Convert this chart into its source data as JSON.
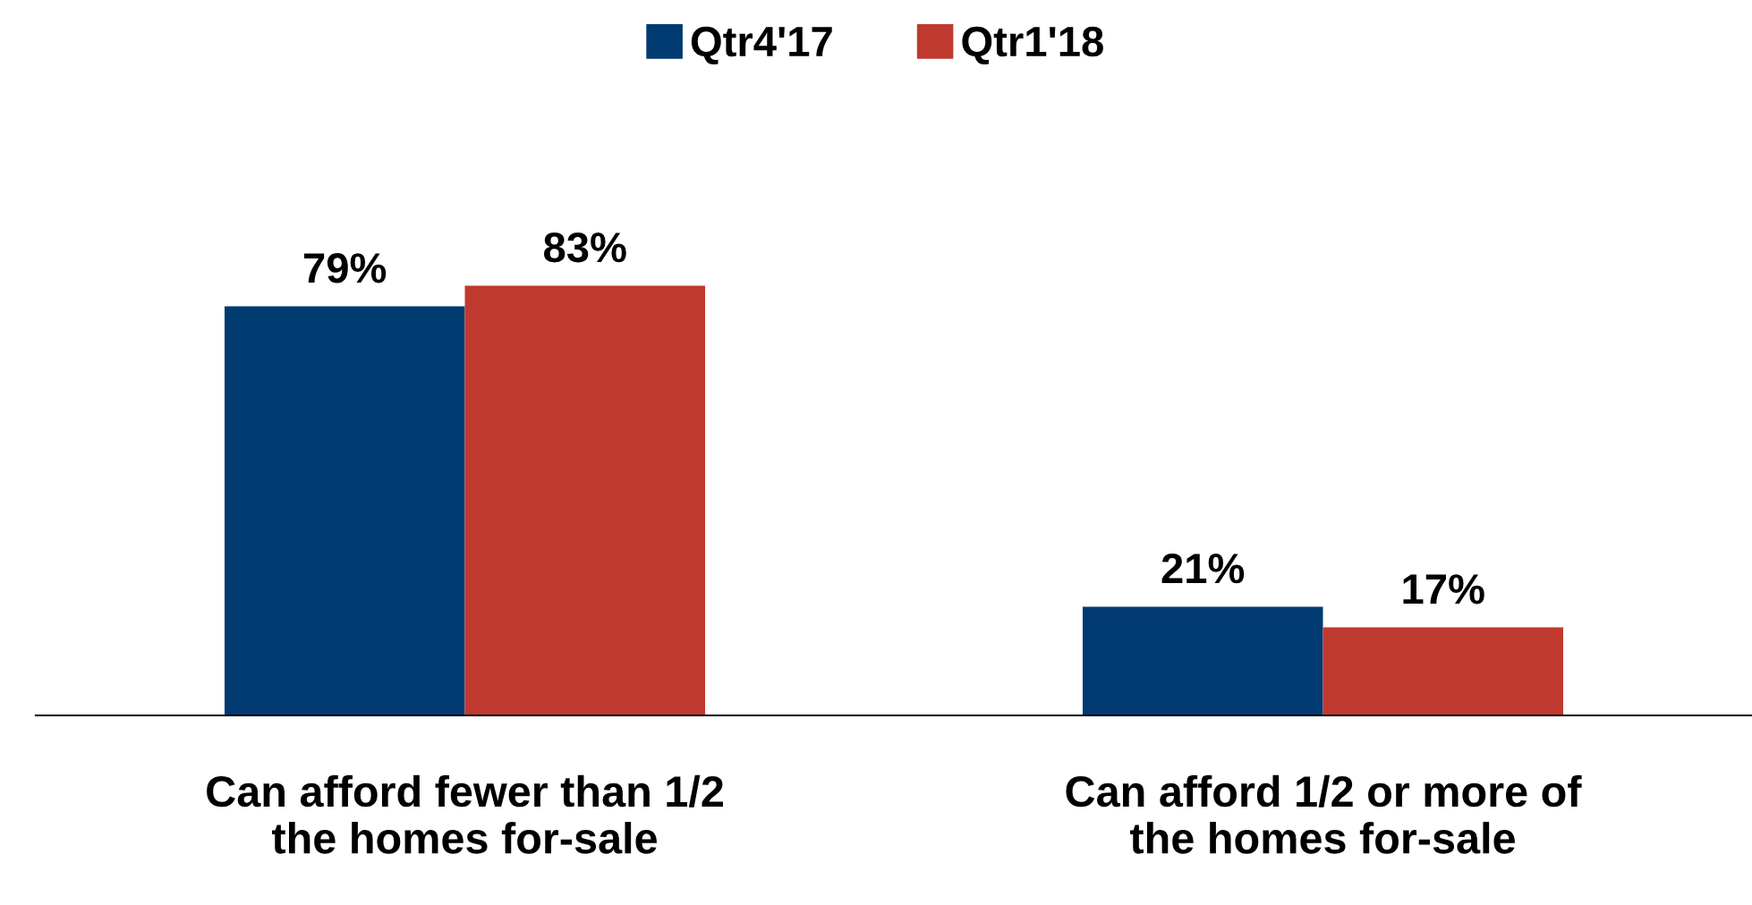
{
  "chart_data": {
    "type": "bar",
    "categories": [
      "Can afford fewer than 1/2\nthe homes for-sale",
      "Can afford 1/2 or more of\nthe homes for-sale"
    ],
    "series": [
      {
        "name": "Qtr4'17",
        "color": "#003a70",
        "values": [
          79,
          21
        ],
        "value_labels": [
          "79%",
          "21%"
        ]
      },
      {
        "name": "Qtr1'18",
        "color": "#c0392f",
        "values": [
          83,
          17
        ],
        "value_labels": [
          "83%",
          "17%"
        ]
      }
    ],
    "legend": "top"
  }
}
